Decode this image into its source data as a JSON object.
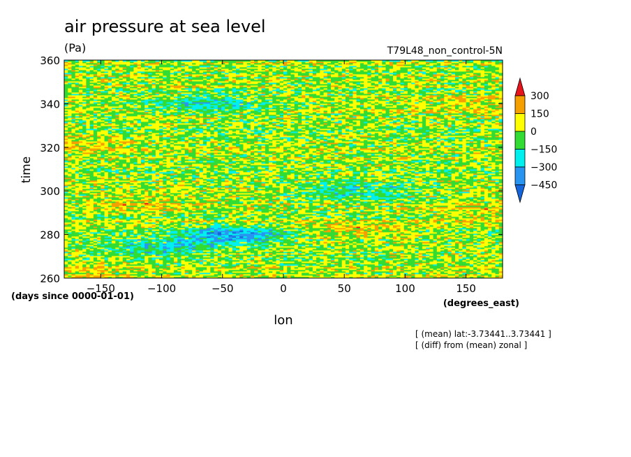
{
  "chart_data": {
    "type": "heatmap",
    "title": "air pressure at sea level",
    "units": "(Pa)",
    "run_label": "T79L48_non_control-5N",
    "xlabel": "lon",
    "x_units": "(degrees_east)",
    "ylabel": "time",
    "y_units": "(days since 0000-01-01)",
    "xlim": [
      -180,
      180
    ],
    "ylim": [
      260,
      360
    ],
    "x_ticks": [
      -150,
      -100,
      -50,
      0,
      50,
      100,
      150
    ],
    "y_ticks": [
      260,
      280,
      300,
      320,
      340,
      360
    ],
    "colorbar": {
      "levels": [
        300,
        150,
        0,
        -150,
        -300,
        -450
      ],
      "colors": [
        "#e8141c",
        "#f5a000",
        "#ffff00",
        "#32dc32",
        "#00f0f0",
        "#2896f0",
        "#1464dc"
      ]
    },
    "notes": [
      "[ (mean) lat:-3.73441..3.73441 ]",
      "[ (diff) from (mean) zonal ]"
    ],
    "features": [
      {
        "lon": -40,
        "time": 280,
        "value": -450
      },
      {
        "lon": -100,
        "time": 274,
        "value": -300
      },
      {
        "lon": 60,
        "time": 300,
        "value": -300
      },
      {
        "lon": -60,
        "time": 340,
        "value": -300
      },
      {
        "lon": 160,
        "time": 340,
        "value": 150
      },
      {
        "lon": -170,
        "time": 322,
        "value": 150
      },
      {
        "lon": -120,
        "time": 294,
        "value": 150
      },
      {
        "lon": 60,
        "time": 282,
        "value": 150
      },
      {
        "lon": -170,
        "time": 263,
        "value": 150
      },
      {
        "lon": 160,
        "time": 290,
        "value": 150
      }
    ]
  }
}
